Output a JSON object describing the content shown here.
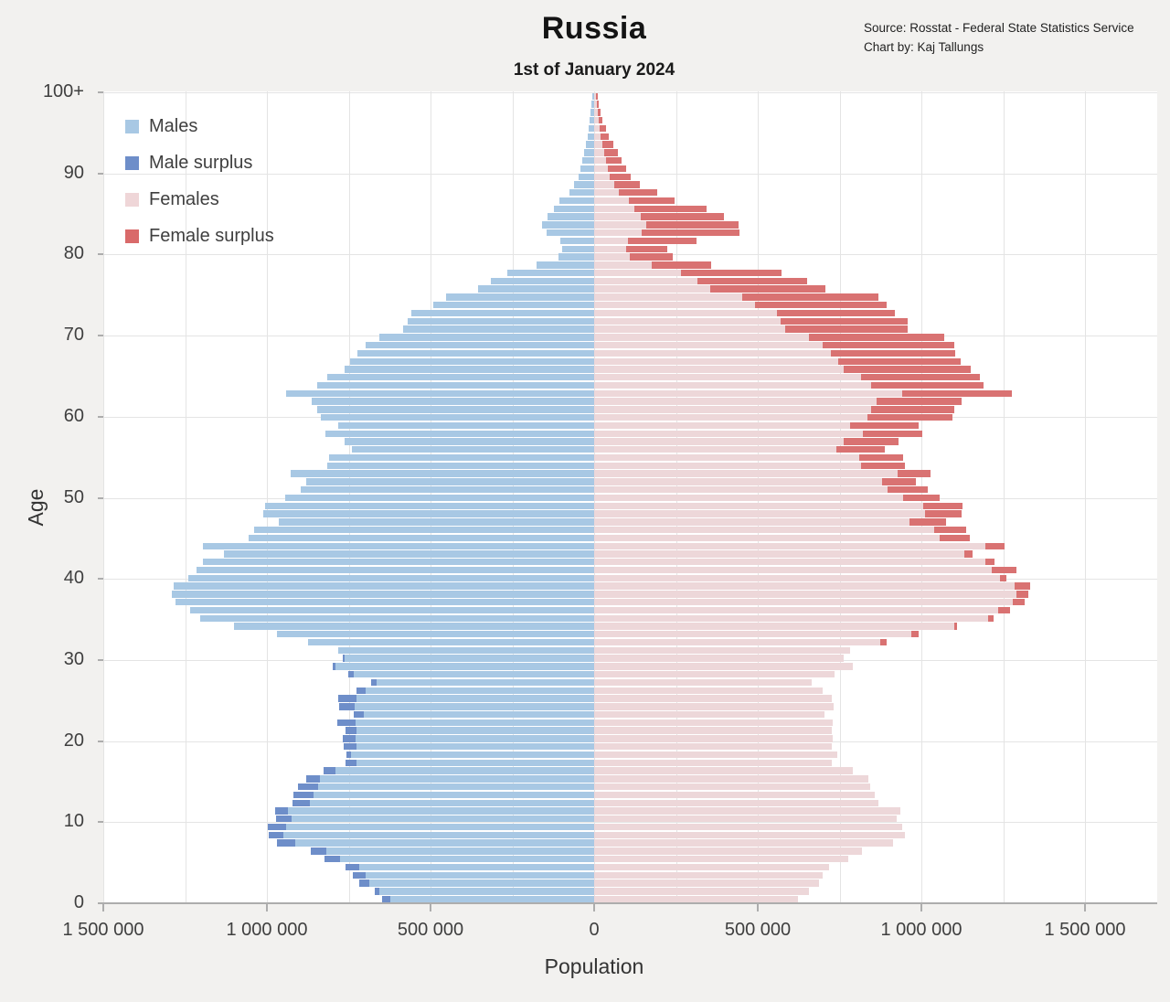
{
  "header": {
    "title": "Russia",
    "subtitle": "1st of January 2024",
    "source_line1": "Source: Rosstat - Federal State Statistics Service",
    "source_line2": "Chart by: Kaj Tallungs"
  },
  "legend": {
    "items": [
      {
        "label": "Males",
        "color": "#A8C8E4"
      },
      {
        "label": "Male surplus",
        "color": "#6E8EC9"
      },
      {
        "label": "Females",
        "color": "#EFD6D8"
      },
      {
        "label": "Female surplus",
        "color": "#D96A6A"
      }
    ]
  },
  "axes": {
    "x_label": "Population",
    "y_label": "Age",
    "x_tick_labels": [
      "1 500 000",
      "1 000 000",
      "500 000",
      "0",
      "500 000",
      "1 000 000",
      "1 500 000"
    ],
    "y_tick_labels": [
      "0",
      "10",
      "20",
      "30",
      "40",
      "50",
      "60",
      "70",
      "80",
      "90",
      "100+"
    ]
  },
  "colors": {
    "page_background": "#F2F1EF",
    "plot_background": "#FFFFFF",
    "gridline": "#E4E4E4",
    "axis": "#ADADAD",
    "males": "#A8C8E4",
    "male_surplus": "#6E8EC9",
    "females": "#EDD7D9",
    "female_surplus": "#D97272"
  },
  "chart_data": {
    "type": "bar",
    "subtype": "population-pyramid",
    "title": "Russia",
    "subtitle": "1st of January 2024",
    "xlabel": "Population",
    "ylabel": "Age",
    "x_max": 1500000,
    "x_gridline_step": 250000,
    "age_min": 0,
    "age_max_label": "100+",
    "ages": "0 to 100+ in single-year bins, bottom to top",
    "males": [
      648000,
      670000,
      717000,
      737000,
      760000,
      823000,
      867000,
      969000,
      995000,
      997000,
      973000,
      976000,
      922000,
      918000,
      904000,
      879000,
      826000,
      760000,
      758000,
      765000,
      768000,
      760000,
      785000,
      735000,
      780000,
      781000,
      726000,
      682000,
      752000,
      799000,
      768000,
      782000,
      873000,
      970000,
      1100000,
      1205000,
      1235000,
      1280000,
      1290000,
      1285000,
      1240000,
      1215000,
      1195000,
      1130000,
      1195000,
      1056000,
      1038000,
      965000,
      1010000,
      1005000,
      943000,
      898000,
      880000,
      926000,
      817000,
      810000,
      740000,
      763000,
      821000,
      782000,
      836000,
      847000,
      863000,
      942000,
      845000,
      815000,
      762000,
      745000,
      724000,
      698000,
      656000,
      585000,
      570000,
      559000,
      493000,
      452000,
      354000,
      316000,
      265000,
      177000,
      110000,
      98000,
      104000,
      144000,
      158000,
      142000,
      124000,
      107000,
      76000,
      61000,
      48000,
      41000,
      35000,
      30000,
      25000,
      20000,
      17000,
      14000,
      11000,
      9000,
      6000
    ],
    "females": [
      624000,
      656000,
      687000,
      698000,
      717000,
      777000,
      819000,
      914000,
      950000,
      940000,
      924000,
      936000,
      869000,
      857000,
      843000,
      838000,
      791000,
      726000,
      743000,
      727000,
      728000,
      727000,
      729000,
      703000,
      731000,
      725000,
      697000,
      665000,
      735000,
      791000,
      763000,
      782000,
      894000,
      991000,
      1110000,
      1220000,
      1271000,
      1315000,
      1327000,
      1333000,
      1259000,
      1290000,
      1224000,
      1156000,
      1255000,
      1147000,
      1136000,
      1075000,
      1122000,
      1126000,
      1055000,
      1019000,
      982000,
      1029000,
      950000,
      945000,
      889000,
      931000,
      1004000,
      991000,
      1094000,
      1100000,
      1122000,
      1276000,
      1190000,
      1180000,
      1150000,
      1119000,
      1103000,
      1101000,
      1071000,
      959000,
      957000,
      920000,
      894000,
      870000,
      708000,
      650000,
      574000,
      358000,
      239000,
      223000,
      312000,
      445000,
      442000,
      396000,
      344000,
      247000,
      193000,
      140000,
      112000,
      98000,
      84000,
      73000,
      58000,
      45000,
      35000,
      26000,
      19000,
      14000,
      12000
    ]
  }
}
